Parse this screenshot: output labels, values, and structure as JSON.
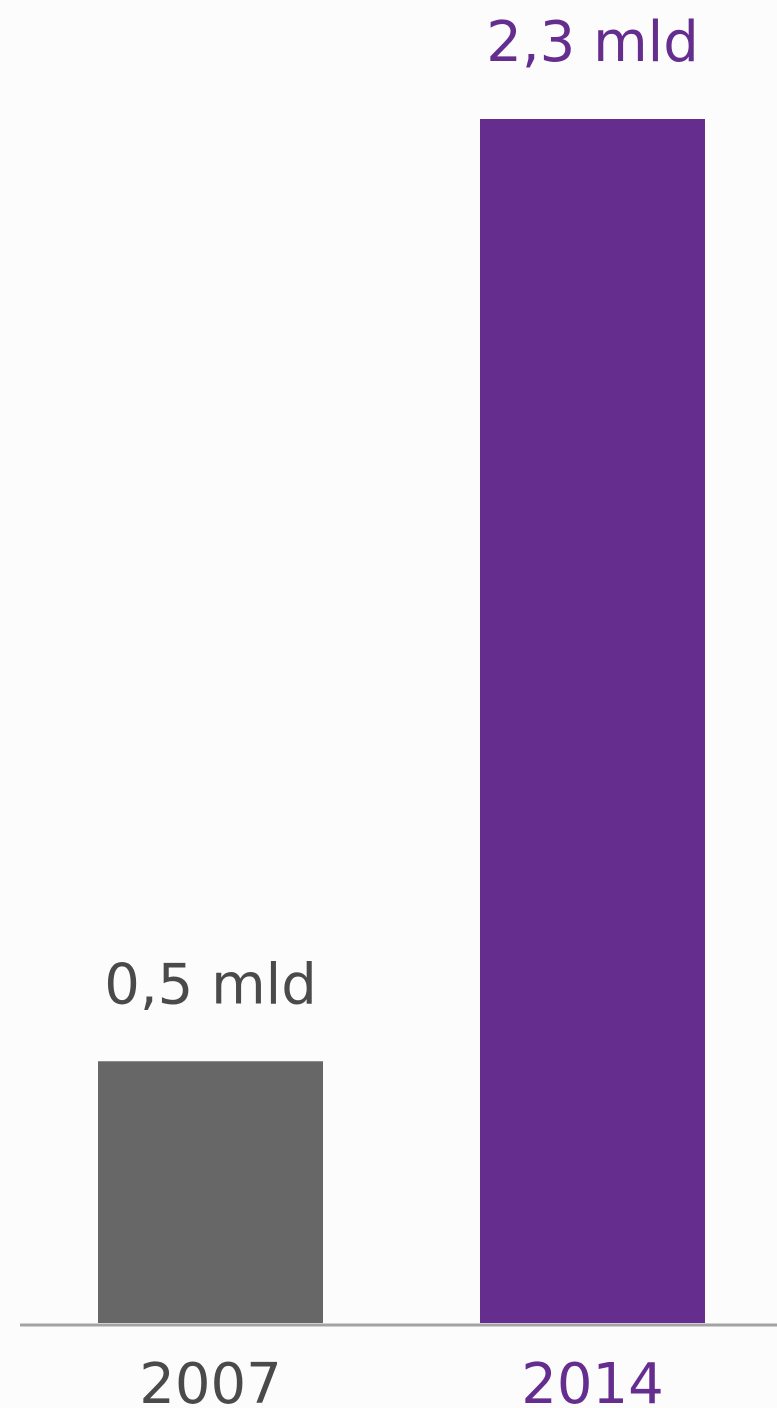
{
  "chart_data": {
    "type": "bar",
    "categories": [
      "2007",
      "2014"
    ],
    "values": [
      0.5,
      2.3
    ],
    "value_labels": [
      "0,5 mld",
      "2,3 mld"
    ],
    "bar_colors": [
      "#676767",
      "#652d8e"
    ],
    "label_colors": [
      "#4a4a4a",
      "#652d8e"
    ],
    "axis_color": "#a3a3a3",
    "title": "",
    "xlabel": "",
    "ylabel": "",
    "ylim": [
      0,
      2.3
    ],
    "grid": false,
    "legend": "none"
  }
}
